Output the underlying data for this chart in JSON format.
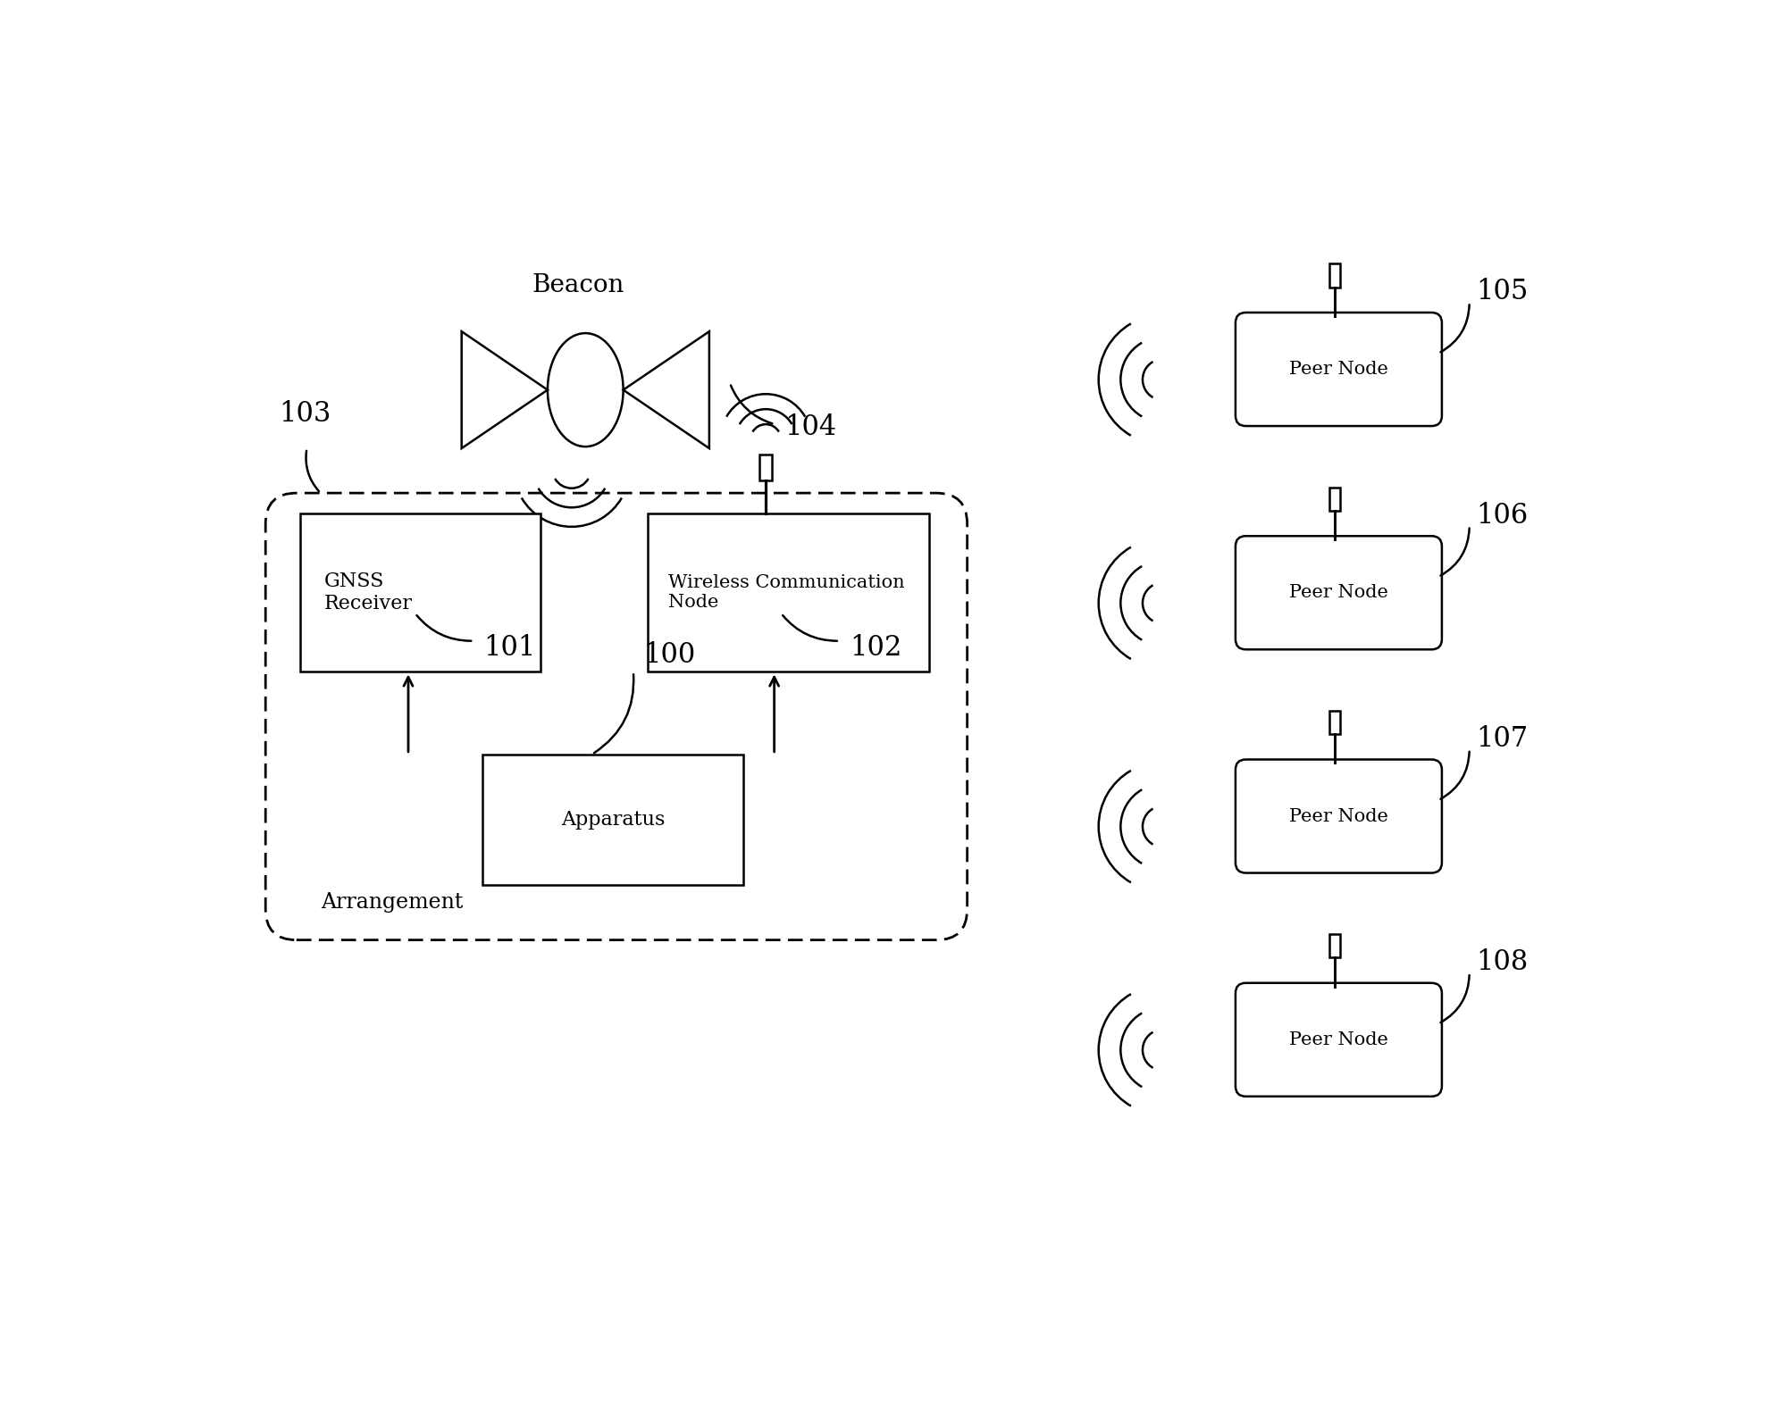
{
  "bg_color": "#ffffff",
  "line_color": "#000000",
  "beacon_label": "Beacon",
  "beacon_ref": "104",
  "arrangement_label": "Arrangement",
  "arrangement_ref": "103",
  "gnss_label": "GNSS\nReceiver",
  "wcn_label": "Wireless Communication\nNode",
  "apparatus_label": "Apparatus",
  "apparatus_ref": "100",
  "arrow_101": "101",
  "arrow_102": "102",
  "peer_nodes": [
    "Peer Node",
    "Peer Node",
    "Peer Node",
    "Peer Node"
  ],
  "peer_refs": [
    "105",
    "106",
    "107",
    "108"
  ]
}
